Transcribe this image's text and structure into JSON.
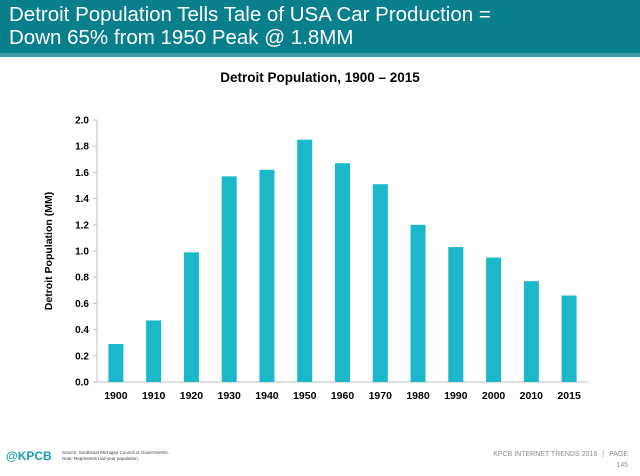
{
  "header": {
    "title_line1": "Detroit Population Tells Tale of USA Car Production =",
    "title_line2": "Down 65% from 1950 Peak @ 1.8MM"
  },
  "chart_data": {
    "type": "bar",
    "title": "Detroit Population, 1900 – 2015",
    "xlabel": "",
    "ylabel": "Detroit Population (MM)",
    "categories": [
      "1900",
      "1910",
      "1920",
      "1930",
      "1940",
      "1950",
      "1960",
      "1970",
      "1980",
      "1990",
      "2000",
      "2010",
      "2015"
    ],
    "values": [
      0.29,
      0.47,
      0.99,
      1.57,
      1.62,
      1.85,
      1.67,
      1.51,
      1.2,
      1.03,
      0.95,
      0.77,
      0.66
    ],
    "ylim": [
      0,
      2.0
    ],
    "yticks": [
      "0.0",
      "0.2",
      "0.4",
      "0.6",
      "0.8",
      "1.0",
      "1.2",
      "1.4",
      "1.6",
      "1.8",
      "2.0"
    ],
    "grid": false,
    "bar_color": "#1ab8c8"
  },
  "footer": {
    "logo_at": "@",
    "logo_text": "KPCB",
    "source_line1": "Source: Southeast Michigan Council of Governments.",
    "source_line2": "Note: Represents mid-year population.",
    "report": "KPCB INTERNET TRENDS 2016",
    "separator": "|",
    "page_label": "PAGE",
    "page_number": "145"
  },
  "colors": {
    "header_bg": "#0a7f8c",
    "accent": "#1ab8c8"
  }
}
